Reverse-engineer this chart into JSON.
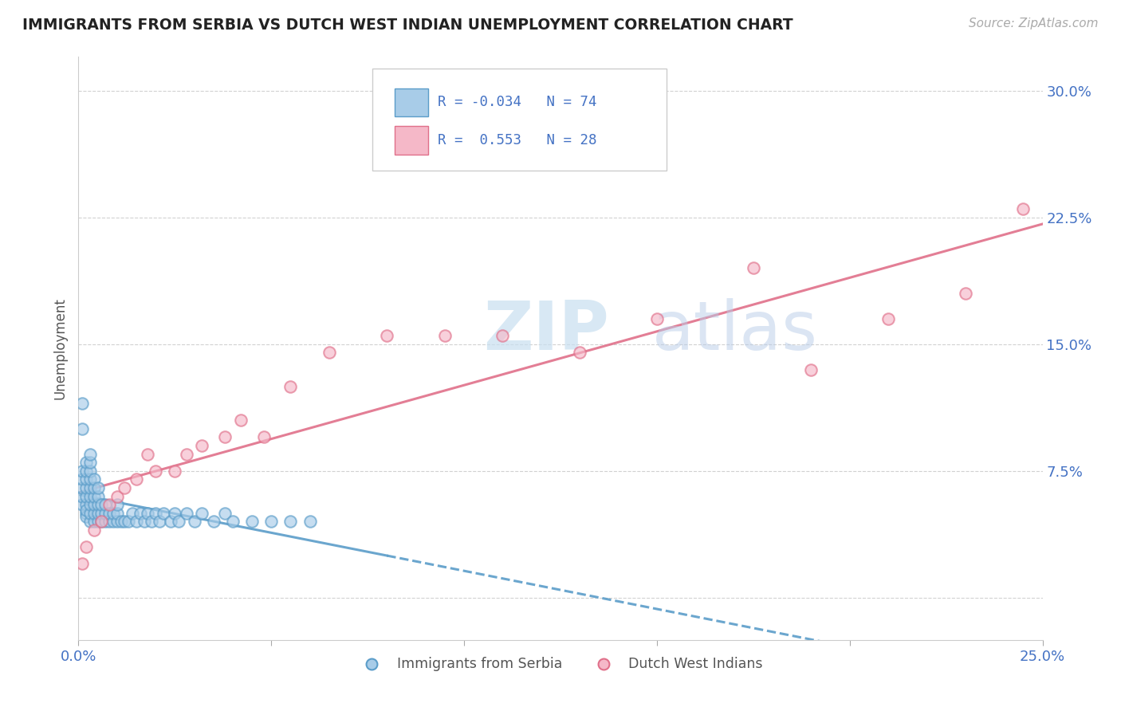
{
  "title": "IMMIGRANTS FROM SERBIA VS DUTCH WEST INDIAN UNEMPLOYMENT CORRELATION CHART",
  "source": "Source: ZipAtlas.com",
  "xlabel": "",
  "ylabel": "Unemployment",
  "xlim": [
    0.0,
    0.25
  ],
  "ylim": [
    -0.025,
    0.32
  ],
  "yticks": [
    0.0,
    0.075,
    0.15,
    0.225,
    0.3
  ],
  "ytick_labels": [
    "",
    "7.5%",
    "15.0%",
    "22.5%",
    "30.0%"
  ],
  "xticks": [
    0.0,
    0.05,
    0.1,
    0.15,
    0.2,
    0.25
  ],
  "xtick_labels": [
    "0.0%",
    "",
    "",
    "",
    "",
    "25.0%"
  ],
  "grid_color": "#cccccc",
  "background_color": "#ffffff",
  "serbia_color": "#a8cce8",
  "serbia_edge_color": "#5b9dc9",
  "dwi_color": "#f5b8c8",
  "dwi_edge_color": "#e0708a",
  "serbia_R": -0.034,
  "serbia_N": 74,
  "dwi_R": 0.553,
  "dwi_N": 28,
  "legend_label_1": "Immigrants from Serbia",
  "legend_label_2": "Dutch West Indians",
  "serbia_line_color": "#5b9dc9",
  "dwi_line_color": "#e0708a",
  "watermark_zip": "ZIP",
  "watermark_atlas": "atlas",
  "serbia_x": [
    0.001,
    0.001,
    0.001,
    0.001,
    0.001,
    0.002,
    0.002,
    0.002,
    0.002,
    0.002,
    0.002,
    0.002,
    0.002,
    0.002,
    0.003,
    0.003,
    0.003,
    0.003,
    0.003,
    0.003,
    0.003,
    0.003,
    0.003,
    0.004,
    0.004,
    0.004,
    0.004,
    0.004,
    0.004,
    0.005,
    0.005,
    0.005,
    0.005,
    0.005,
    0.006,
    0.006,
    0.006,
    0.007,
    0.007,
    0.007,
    0.008,
    0.008,
    0.009,
    0.009,
    0.01,
    0.01,
    0.01,
    0.011,
    0.012,
    0.013,
    0.014,
    0.015,
    0.016,
    0.017,
    0.018,
    0.019,
    0.02,
    0.021,
    0.022,
    0.024,
    0.025,
    0.026,
    0.028,
    0.03,
    0.032,
    0.035,
    0.038,
    0.04,
    0.045,
    0.05,
    0.055,
    0.06,
    0.001,
    0.001
  ],
  "serbia_y": [
    0.055,
    0.06,
    0.065,
    0.07,
    0.075,
    0.05,
    0.055,
    0.06,
    0.065,
    0.07,
    0.075,
    0.08,
    0.048,
    0.052,
    0.045,
    0.05,
    0.055,
    0.06,
    0.065,
    0.07,
    0.075,
    0.08,
    0.085,
    0.045,
    0.05,
    0.055,
    0.06,
    0.065,
    0.07,
    0.045,
    0.05,
    0.055,
    0.06,
    0.065,
    0.045,
    0.05,
    0.055,
    0.045,
    0.05,
    0.055,
    0.045,
    0.05,
    0.045,
    0.05,
    0.045,
    0.05,
    0.055,
    0.045,
    0.045,
    0.045,
    0.05,
    0.045,
    0.05,
    0.045,
    0.05,
    0.045,
    0.05,
    0.045,
    0.05,
    0.045,
    0.05,
    0.045,
    0.05,
    0.045,
    0.05,
    0.045,
    0.05,
    0.045,
    0.045,
    0.045,
    0.045,
    0.045,
    0.1,
    0.115
  ],
  "dwi_x": [
    0.001,
    0.002,
    0.004,
    0.006,
    0.008,
    0.01,
    0.012,
    0.015,
    0.018,
    0.02,
    0.025,
    0.028,
    0.032,
    0.038,
    0.042,
    0.048,
    0.055,
    0.065,
    0.08,
    0.095,
    0.11,
    0.13,
    0.15,
    0.175,
    0.19,
    0.21,
    0.23,
    0.245
  ],
  "dwi_y": [
    0.02,
    0.03,
    0.04,
    0.045,
    0.055,
    0.06,
    0.065,
    0.07,
    0.085,
    0.075,
    0.075,
    0.085,
    0.09,
    0.095,
    0.105,
    0.095,
    0.125,
    0.145,
    0.155,
    0.155,
    0.155,
    0.145,
    0.165,
    0.195,
    0.135,
    0.165,
    0.18,
    0.23
  ]
}
